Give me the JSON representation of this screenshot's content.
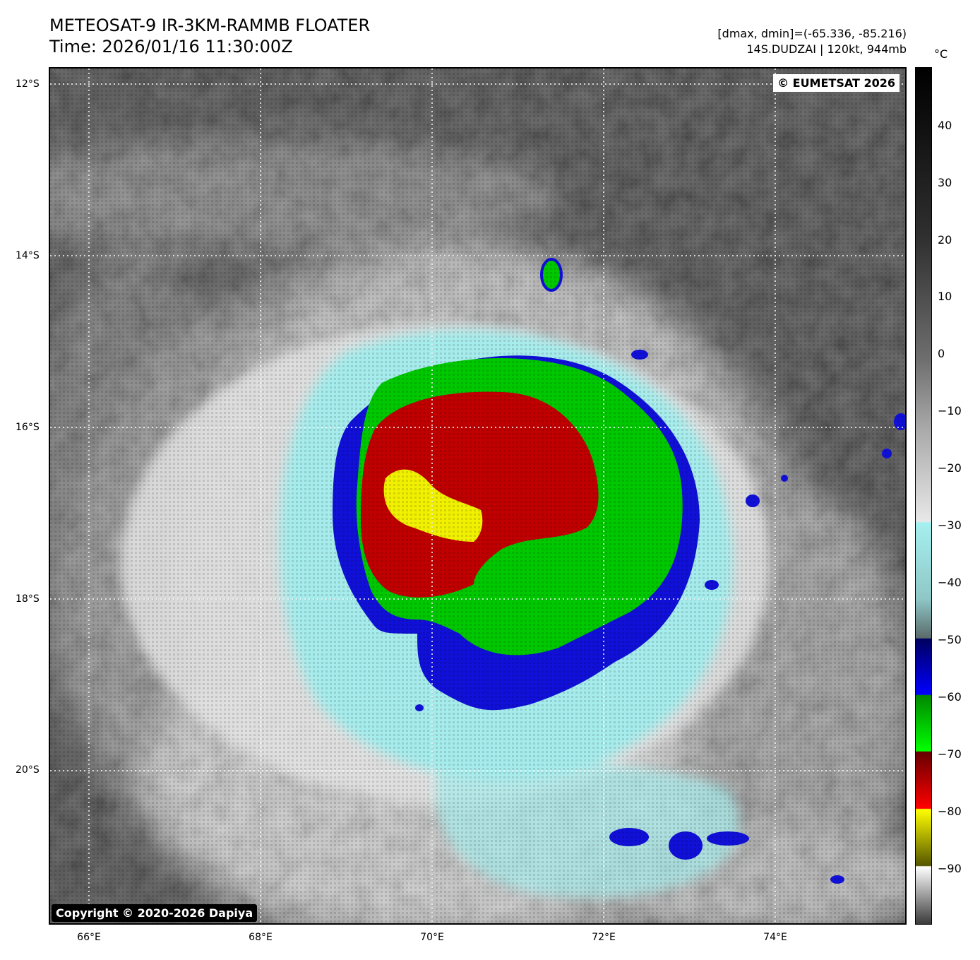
{
  "header": {
    "title_line1": "METEOSAT-9 IR-3KM-RAMMB FLOATER",
    "title_line2": "Time: 2026/01/16 11:30:00Z",
    "meta_line1": "[dmax, dmin]=(-65.336, -85.216)",
    "meta_line2": "14S.DUDZAI | 120kt, 944mb"
  },
  "map": {
    "latitude_labels": [
      "12°S",
      "14°S",
      "16°S",
      "18°S",
      "20°S"
    ],
    "longitude_labels": [
      "66°E",
      "68°E",
      "70°E",
      "72°E",
      "74°E"
    ],
    "eumetsat_credit": "© EUMETSAT 2026",
    "copyright": "Copyright © 2020-2026 Dapiya"
  },
  "colorbar": {
    "unit": "°C",
    "ticks": [
      "40",
      "30",
      "20",
      "10",
      "0",
      "−10",
      "−20",
      "−30",
      "−40",
      "−50",
      "−60",
      "−70",
      "−80",
      "−90"
    ],
    "bands": [
      {
        "range": "-60 to -50",
        "color": "#0000ff"
      },
      {
        "range": "-70 to -60",
        "color": "#00ff00"
      },
      {
        "range": "-80 to -70",
        "color": "#ff0000"
      },
      {
        "range": "-90 to -80",
        "color": "#ffff00"
      }
    ]
  },
  "colors": {
    "cold_band_blue": "#1010d8",
    "cold_band_green": "#00c800",
    "cold_band_red": "#c00000",
    "cold_band_yellow": "#f0f000",
    "cyan_edge": "#a6ecec"
  }
}
